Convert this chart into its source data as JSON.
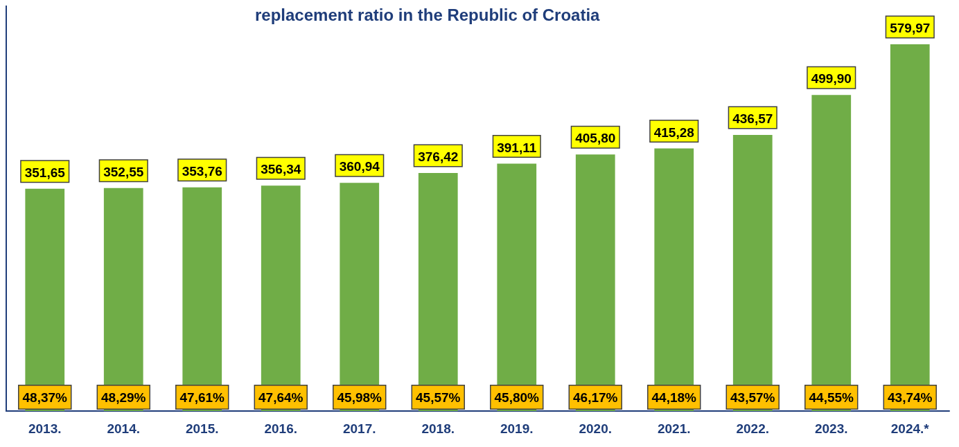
{
  "chart_data": {
    "type": "bar",
    "title": "replacement ratio in the Republic of Croatia",
    "categories": [
      "2013.",
      "2014.",
      "2015.",
      "2016.",
      "2017.",
      "2018.",
      "2019.",
      "2020.",
      "2021.",
      "2022.",
      "2023.",
      "2024.*"
    ],
    "series": [
      {
        "color": "#70ad47",
        "values": [
          351.65,
          352.55,
          353.76,
          356.34,
          360.94,
          376.42,
          391.11,
          405.8,
          415.28,
          436.57,
          499.9,
          579.97
        ],
        "value_labels": [
          "351,65",
          "352,55",
          "353,76",
          "356,34",
          "360,94",
          "376,42",
          "391,11",
          "405,80",
          "415,28",
          "436,57",
          "499,90",
          "579,97"
        ]
      }
    ],
    "annotations": [
      "48,37%",
      "48,29%",
      "47,61%",
      "47,64%",
      "45,98%",
      "45,57%",
      "45,80%",
      "46,17%",
      "44,18%",
      "43,57%",
      "44,55%",
      "43,74%"
    ]
  }
}
